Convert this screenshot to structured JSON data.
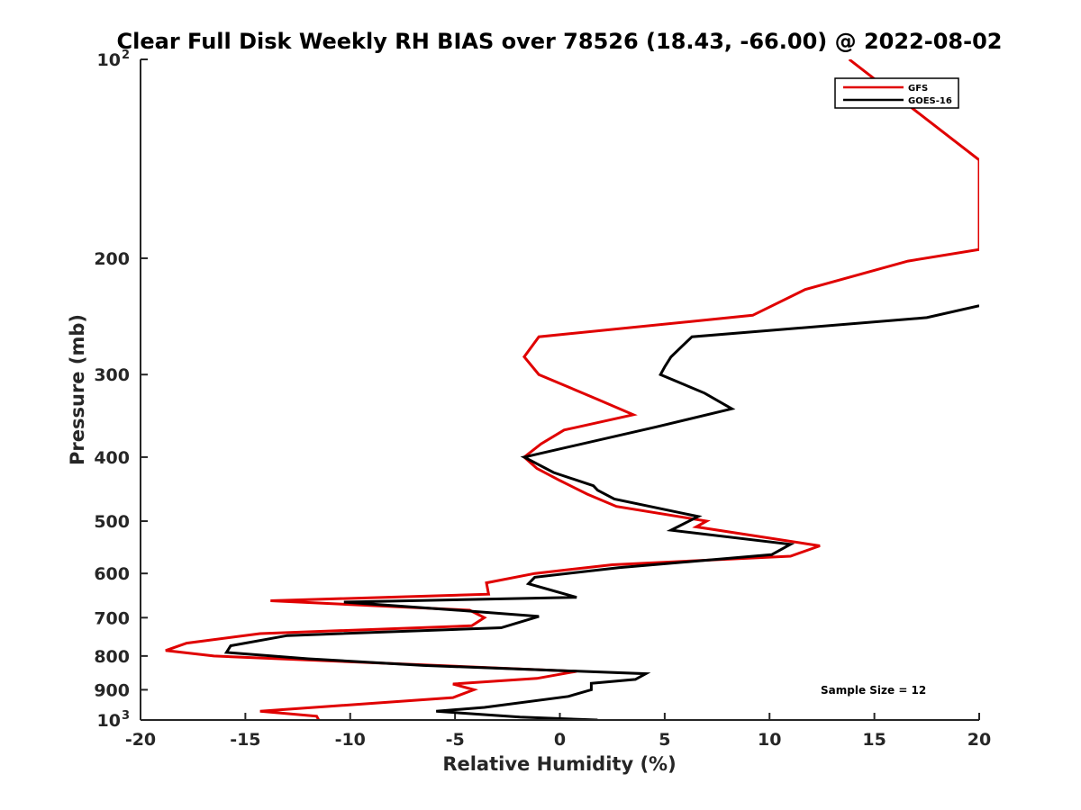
{
  "chart_data": {
    "type": "line",
    "title": "Clear Full Disk Weekly RH BIAS over 78526 (18.43, -66.00) @ 2022-08-02",
    "xlabel": "Relative Humidity (%)",
    "ylabel": "Pressure (mb)",
    "xlim": [
      -20,
      20
    ],
    "ylim": [
      100,
      1000
    ],
    "y_scale": "log",
    "y_reversed": true,
    "x_ticks": [
      -20,
      -15,
      -10,
      -5,
      0,
      5,
      10,
      15,
      20
    ],
    "x_tick_labels": [
      "-20",
      "-15",
      "-10",
      "-5",
      "0",
      "5",
      "10",
      "15",
      "20"
    ],
    "y_ticks": [
      100,
      200,
      300,
      400,
      500,
      600,
      700,
      800,
      900,
      1000
    ],
    "y_tick_labels": [
      {
        "value": 100,
        "base": "10",
        "exp": "2"
      },
      {
        "value": 200,
        "base": "200",
        "exp": ""
      },
      {
        "value": 300,
        "base": "300",
        "exp": ""
      },
      {
        "value": 400,
        "base": "400",
        "exp": ""
      },
      {
        "value": 500,
        "base": "500",
        "exp": ""
      },
      {
        "value": 600,
        "base": "600",
        "exp": ""
      },
      {
        "value": 700,
        "base": "700",
        "exp": ""
      },
      {
        "value": 800,
        "base": "800",
        "exp": ""
      },
      {
        "value": 900,
        "base": "900",
        "exp": ""
      },
      {
        "value": 1000,
        "base": "10",
        "exp": "3"
      }
    ],
    "grid": false,
    "legend_position": "top-right",
    "annotation": "Sample Size = 12",
    "series": [
      {
        "name": "GFS",
        "color": "#e00000",
        "x": [
          13.8,
          20,
          20,
          16.6,
          11.7,
          9.2,
          -1.0,
          -1.7,
          -1.0,
          1.8,
          3.5,
          0.2,
          -0.9,
          -1.7,
          -1.1,
          0.0,
          1.3,
          2.7,
          7.0,
          6.5,
          12.4,
          11.0,
          2.5,
          -1.2,
          -3.5,
          -3.4,
          -13.8,
          -4.3,
          -3.6,
          -4.2,
          -14.3,
          -17.8,
          -18.8,
          -16.5,
          0.8,
          -1.1,
          -5.1,
          -4.1,
          -5.1,
          -14.3,
          -11.6,
          -11.5
        ],
        "y": [
          100,
          142,
          194,
          202,
          223,
          244,
          263,
          282,
          300,
          327,
          345,
          364,
          382,
          400,
          416,
          434,
          455,
          475,
          500,
          510,
          545,
          565,
          582,
          600,
          620,
          645,
          660,
          682,
          700,
          720,
          740,
          765,
          785,
          800,
          844,
          865,
          882,
          900,
          925,
          970,
          987,
          1000
        ]
      },
      {
        "name": "GOES-16",
        "color": "#000000",
        "x": [
          20,
          17.5,
          6.3,
          5.3,
          5.0,
          4.8,
          6.9,
          8.2,
          4.6,
          -1.7,
          -0.3,
          1.6,
          1.8,
          2.6,
          6.6,
          5.3,
          11.0,
          10.1,
          2.8,
          -1.2,
          -1.5,
          0.8,
          -10.3,
          -4.9,
          -1.0,
          -2.8,
          -13.0,
          -15.7,
          -15.9,
          -12.0,
          -6.5,
          4.1,
          3.6,
          1.5,
          1.5,
          0.4,
          -3.6,
          -5.9,
          -1.9,
          1.8
        ],
        "y": [
          236,
          246,
          263,
          282,
          292,
          300,
          320,
          338,
          360,
          400,
          422,
          442,
          449,
          463,
          492,
          516,
          542,
          562,
          588,
          608,
          622,
          652,
          663,
          682,
          697,
          725,
          745,
          772,
          790,
          808,
          827,
          851,
          868,
          880,
          900,
          921,
          957,
          970,
          990,
          1000
        ]
      }
    ]
  }
}
